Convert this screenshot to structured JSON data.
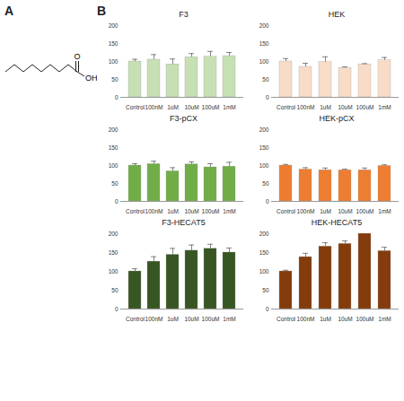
{
  "panel_labels": [
    "A",
    "B"
  ],
  "structure": {
    "labels": [
      "O",
      "OH"
    ]
  },
  "chart_data": [
    {
      "type": "bar",
      "title": "F3",
      "categories": [
        "Control",
        "100nM",
        "1uM",
        "10uM",
        "100uM",
        "1mM"
      ],
      "values": [
        100,
        105,
        92,
        112,
        113,
        115
      ],
      "errors": [
        6,
        14,
        15,
        10,
        15,
        10
      ],
      "color": "#c6e0b4",
      "ylim": [
        0,
        200
      ],
      "yticks": [
        0,
        50,
        100,
        150,
        200
      ]
    },
    {
      "type": "bar",
      "title": "HEK",
      "categories": [
        "Control",
        "100nM",
        "1uM",
        "10uM",
        "100uM",
        "1mM"
      ],
      "values": [
        100,
        85,
        98,
        82,
        92,
        103
      ],
      "errors": [
        8,
        10,
        15,
        3,
        2,
        8
      ],
      "color": "#f8dcc8",
      "ylim": [
        0,
        200
      ],
      "yticks": [
        0,
        50,
        100,
        150,
        200
      ]
    },
    {
      "type": "bar",
      "title": "F3-pCX",
      "categories": [
        "Control",
        "100nM",
        "1uM",
        "10uM",
        "100uM",
        "1mM"
      ],
      "values": [
        100,
        104,
        84,
        103,
        95,
        97
      ],
      "errors": [
        5,
        8,
        10,
        7,
        10,
        12
      ],
      "color": "#70ad47",
      "ylim": [
        0,
        200
      ],
      "yticks": [
        0,
        50,
        100,
        150,
        200
      ]
    },
    {
      "type": "bar",
      "title": "HEK-pCX",
      "categories": [
        "Control",
        "100nM",
        "1uM",
        "10uM",
        "100uM",
        "1mM"
      ],
      "values": [
        100,
        89,
        87,
        87,
        87,
        99
      ],
      "errors": [
        3,
        5,
        6,
        3,
        6,
        3
      ],
      "color": "#ed7d31",
      "ylim": [
        0,
        200
      ],
      "yticks": [
        0,
        50,
        100,
        150,
        200
      ]
    },
    {
      "type": "bar",
      "title": "F3-HECAT5",
      "categories": [
        "Control",
        "100nM",
        "1uM",
        "10uM",
        "100uM",
        "1mM"
      ],
      "values": [
        100,
        126,
        144,
        155,
        160,
        150
      ],
      "errors": [
        7,
        13,
        17,
        15,
        12,
        12
      ],
      "color": "#375623",
      "ylim": [
        0,
        200
      ],
      "yticks": [
        0,
        50,
        100,
        150,
        200
      ]
    },
    {
      "type": "bar",
      "title": "HEK-HECAT5",
      "categories": [
        "Control",
        "100nM",
        "1uM",
        "10uM",
        "100uM",
        "1mM"
      ],
      "values": [
        100,
        138,
        166,
        173,
        200,
        154
      ],
      "errors": [
        3,
        10,
        10,
        8,
        5,
        10
      ],
      "color": "#843c0c",
      "ylim": [
        0,
        200
      ],
      "yticks": [
        0,
        50,
        100,
        150,
        200
      ]
    }
  ]
}
